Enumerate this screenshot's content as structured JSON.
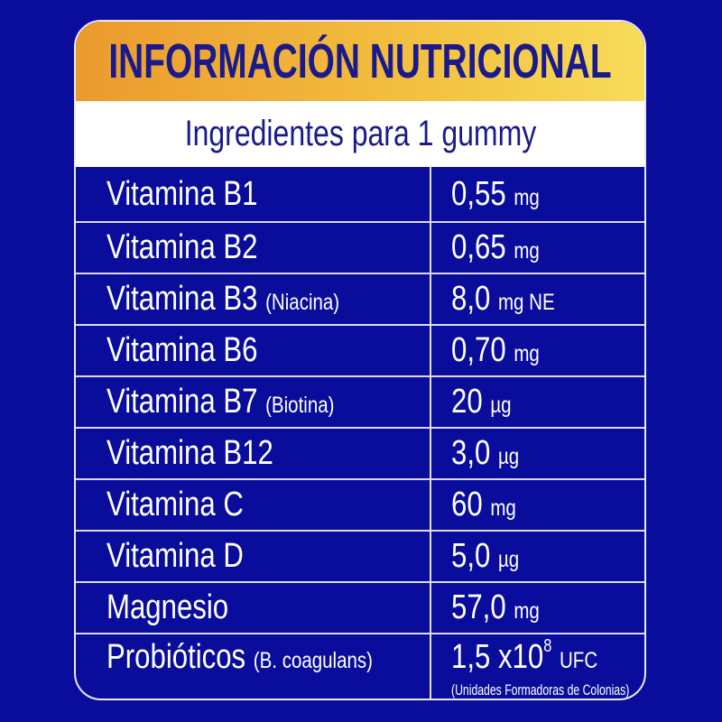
{
  "title": "INFORMACIÓN NUTRICIONAL",
  "subtitle": "Ingredientes para 1 gummy",
  "colors": {
    "background": "#0a0d9c",
    "header_gradient_start": "#eb9a2e",
    "header_gradient_end": "#f7dc5a",
    "title_text": "#1a1a8c"
  },
  "rows": [
    {
      "name": "Vitamina B1",
      "qualifier": "",
      "amount": "0,55",
      "unit": "mg"
    },
    {
      "name": "Vitamina B2",
      "qualifier": "",
      "amount": "0,65",
      "unit": "mg"
    },
    {
      "name": "Vitamina B3",
      "qualifier": "(Niacina)",
      "amount": "8,0",
      "unit": "mg NE"
    },
    {
      "name": "Vitamina B6",
      "qualifier": "",
      "amount": "0,70",
      "unit": "mg"
    },
    {
      "name": "Vitamina B7",
      "qualifier": "(Biotina)",
      "amount": "20",
      "unit": "µg"
    },
    {
      "name": "Vitamina B12",
      "qualifier": "",
      "amount": "3,0",
      "unit": "µg"
    },
    {
      "name": "Vitamina C",
      "qualifier": "",
      "amount": "60",
      "unit": "mg"
    },
    {
      "name": "Vitamina D",
      "qualifier": "",
      "amount": "5,0",
      "unit": "µg"
    },
    {
      "name": "Magnesio",
      "qualifier": "",
      "amount": "57,0",
      "unit": "mg"
    }
  ],
  "probiotics": {
    "name": "Probióticos",
    "qualifier": "(B. coagulans)",
    "amount": "1,5 x10",
    "exponent": "8",
    "unit": "UFC",
    "note": "(Unidades Formadoras de Colonias)"
  }
}
